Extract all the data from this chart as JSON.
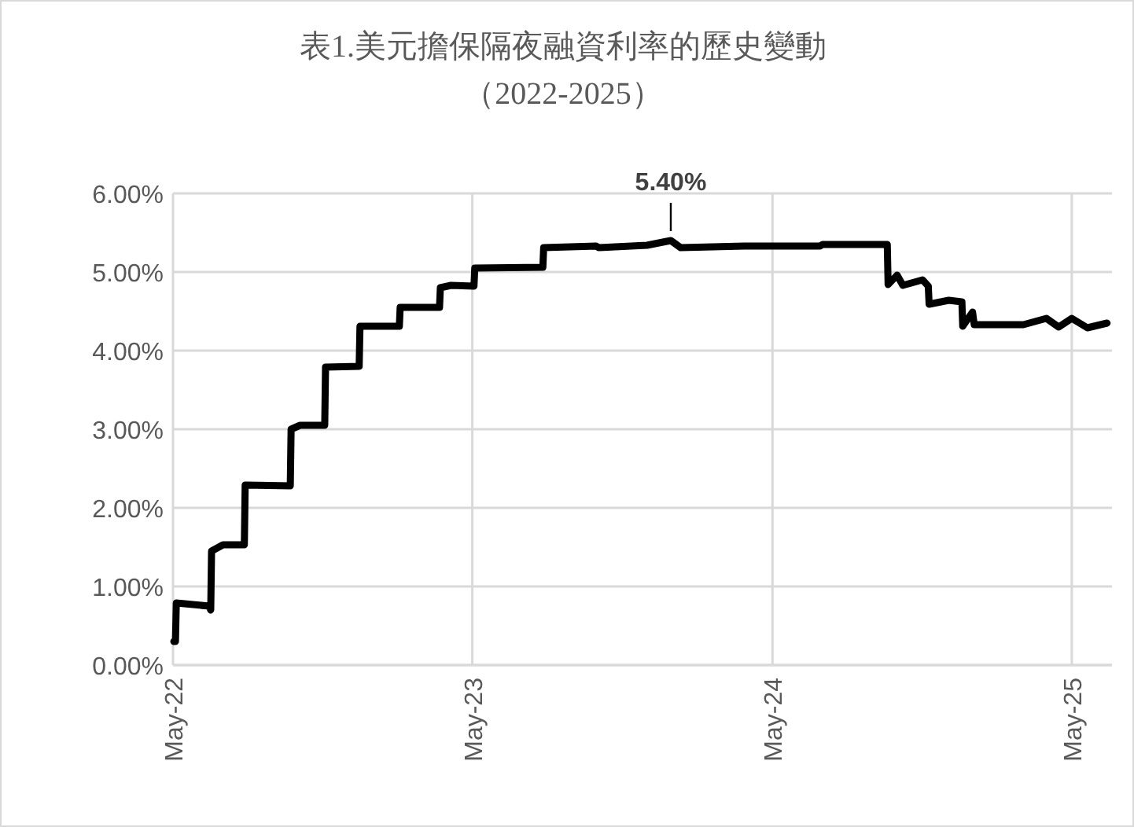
{
  "chart_data": {
    "type": "line",
    "title": "表1.美元擔保隔夜融資利率的歷史變動",
    "subtitle": "（2022-2025）",
    "series": [
      {
        "color": "#000000",
        "x": [
          "2022-05-02",
          "2022-05-04",
          "2022-05-05",
          "2022-06-14",
          "2022-06-16",
          "2022-06-17",
          "2022-07-01",
          "2022-07-27",
          "2022-07-28",
          "2022-09-21",
          "2022-09-22",
          "2022-10-03",
          "2022-11-02",
          "2022-11-03",
          "2022-12-14",
          "2022-12-15",
          "2023-02-01",
          "2023-02-02",
          "2023-03-22",
          "2023-03-23",
          "2023-04-05",
          "2023-05-03",
          "2023-05-04",
          "2023-07-26",
          "2023-07-27",
          "2023-09-29",
          "2023-10-02",
          "2023-11-30",
          "2023-12-29",
          "2024-01-10",
          "2024-03-28",
          "2024-06-28",
          "2024-07-01",
          "2024-09-18",
          "2024-09-19",
          "2024-09-30",
          "2024-10-07",
          "2024-10-31",
          "2024-11-07",
          "2024-11-08",
          "2024-12-02",
          "2024-12-18",
          "2024-12-19",
          "2024-12-31",
          "2025-01-02",
          "2025-03-03",
          "2025-03-31",
          "2025-04-15",
          "2025-05-01",
          "2025-05-20",
          "2025-06-13"
        ],
        "values": [
          0.3,
          0.3,
          0.79,
          0.75,
          0.7,
          1.45,
          1.53,
          1.53,
          2.29,
          2.28,
          3.0,
          3.05,
          3.05,
          3.79,
          3.8,
          4.31,
          4.31,
          4.55,
          4.55,
          4.8,
          4.83,
          4.82,
          5.05,
          5.06,
          5.31,
          5.33,
          5.31,
          5.34,
          5.4,
          5.31,
          5.33,
          5.33,
          5.35,
          5.35,
          4.84,
          4.96,
          4.83,
          4.9,
          4.82,
          4.59,
          4.64,
          4.62,
          4.31,
          4.49,
          4.33,
          4.33,
          4.41,
          4.3,
          4.41,
          4.29,
          4.35
        ]
      }
    ],
    "xlim": [
      "2022-05-01",
      "2025-06-19"
    ],
    "xticks": [
      {
        "value": "2022-05-01",
        "label": "May-22"
      },
      {
        "value": "2023-05-01",
        "label": "May-23"
      },
      {
        "value": "2024-05-01",
        "label": "May-24"
      },
      {
        "value": "2025-05-01",
        "label": "May-25"
      }
    ],
    "ylim": [
      0,
      6
    ],
    "yticks": [
      {
        "value": 0,
        "label": "0.00%"
      },
      {
        "value": 1,
        "label": "1.00%"
      },
      {
        "value": 2,
        "label": "2.00%"
      },
      {
        "value": 3,
        "label": "3.00%"
      },
      {
        "value": 4,
        "label": "4.00%"
      },
      {
        "value": 5,
        "label": "5.00%"
      },
      {
        "value": 6,
        "label": "6.00%"
      }
    ],
    "grid": true,
    "marker": "none",
    "line_style": "solid",
    "annotations": [
      {
        "text": "5.40%",
        "x": "2023-12-29",
        "y": 5.4
      }
    ]
  }
}
